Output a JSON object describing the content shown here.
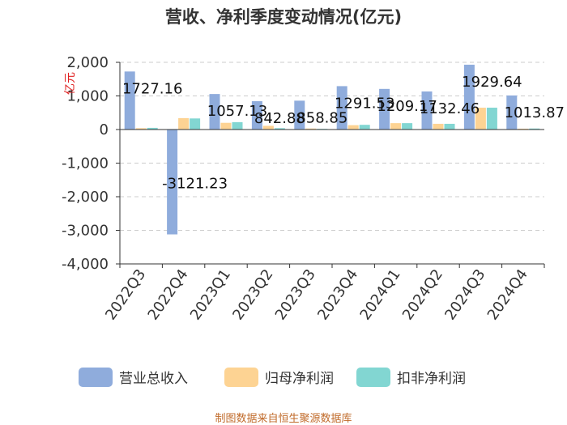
{
  "chart_data": {
    "type": "bar",
    "title": "营收、净利季度变动情况(亿元)",
    "ylabel": "亿元",
    "xlabel": "",
    "categories": [
      "2022Q3",
      "2022Q4",
      "2023Q1",
      "2023Q2",
      "2023Q3",
      "2023Q4",
      "2024Q1",
      "2024Q2",
      "2024Q3",
      "2024Q4"
    ],
    "ylim": [
      -4000,
      2000
    ],
    "yticks": [
      2000,
      1000,
      0,
      -1000,
      -2000,
      -3000,
      -4000
    ],
    "ytick_labels": [
      "2,000",
      "1,000",
      "0",
      "-1,000",
      "-2,000",
      "-3,000",
      "-4,000"
    ],
    "grid": true,
    "legend_position": "bottom",
    "series": [
      {
        "name": "营业总收入",
        "color": "#8facdc",
        "values": [
          1727.16,
          -3121.23,
          1057.13,
          842.88,
          858.85,
          1291.53,
          1209.17,
          1132.46,
          1929.64,
          1013.87
        ]
      },
      {
        "name": "归母净利润",
        "color": "#fdd393",
        "values": [
          40,
          340,
          200,
          110,
          30,
          130,
          190,
          170,
          650,
          25
        ]
      },
      {
        "name": "扣非净利润",
        "color": "#82d6d2",
        "values": [
          50,
          330,
          220,
          40,
          20,
          140,
          190,
          170,
          650,
          30
        ]
      }
    ],
    "data_labels": [
      "1727.16",
      "-3121.23",
      "1057.13",
      "842.88",
      "858.85",
      "1291.53",
      "1209.17",
      "1132.46",
      "1929.64",
      "1013.87"
    ]
  },
  "source": "制图数据来自恒生聚源数据库"
}
